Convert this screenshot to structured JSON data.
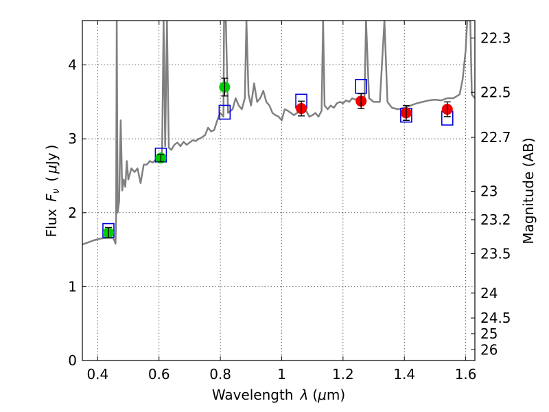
{
  "chart_data": {
    "type": "scatter",
    "xlabel_text": "Wavelength",
    "xlabel_symbol": "λ",
    "xlabel_unit_open": "(",
    "xlabel_unit_mu": "μ",
    "xlabel_unit_rest": "m)",
    "ylabel_text": "Flux",
    "ylabel_symbol": "F",
    "ylabel_sub": "ν",
    "ylabel_unit_open": "(",
    "ylabel_unit_mu": "μ",
    "ylabel_unit_rest": "Jy",
    "ylabel_unit_close": ")",
    "y2label": "Magnitude (AB)",
    "xlim": [
      0.35,
      1.63
    ],
    "ylim": [
      0,
      4.6
    ],
    "grid": true,
    "x_ticks": [
      {
        "v": 0.4,
        "label": "0.4"
      },
      {
        "v": 0.6,
        "label": "0.6"
      },
      {
        "v": 0.8,
        "label": "0.8"
      },
      {
        "v": 1.0,
        "label": "1"
      },
      {
        "v": 1.2,
        "label": "1.2"
      },
      {
        "v": 1.4,
        "label": "1.4"
      },
      {
        "v": 1.6,
        "label": "1.6"
      }
    ],
    "y_ticks": [
      {
        "v": 0,
        "label": "0"
      },
      {
        "v": 1,
        "label": "1"
      },
      {
        "v": 2,
        "label": "2"
      },
      {
        "v": 3,
        "label": "3"
      },
      {
        "v": 4,
        "label": "4"
      }
    ],
    "mag_ticks": [
      {
        "mag": 22.3,
        "label": "22.3"
      },
      {
        "mag": 22.5,
        "label": "22.5"
      },
      {
        "mag": 22.7,
        "label": "22.7"
      },
      {
        "mag": 23,
        "label": "23"
      },
      {
        "mag": 23.2,
        "label": "23.2"
      },
      {
        "mag": 23.5,
        "label": "23.5"
      },
      {
        "mag": 24,
        "label": "24"
      },
      {
        "mag": 24.5,
        "label": "24.5"
      },
      {
        "mag": 25,
        "label": "25"
      },
      {
        "mag": 26,
        "label": "26"
      }
    ],
    "series": [
      {
        "marker": "circle",
        "color": "#00cc00",
        "points": [
          {
            "x": 0.435,
            "y": 1.73,
            "err": 0.07
          },
          {
            "x": 0.606,
            "y": 2.74,
            "err": 0.05
          },
          {
            "x": 0.814,
            "y": 3.7,
            "err": 0.12
          }
        ]
      },
      {
        "marker": "circle",
        "color": "#ee0000",
        "points": [
          {
            "x": 1.064,
            "y": 3.41,
            "err": 0.1
          },
          {
            "x": 1.259,
            "y": 3.51,
            "err": 0.1
          },
          {
            "x": 1.406,
            "y": 3.35,
            "err": 0.1
          },
          {
            "x": 1.54,
            "y": 3.4,
            "err": 0.1
          }
        ]
      },
      {
        "marker": "open-square",
        "color": "#0000dd",
        "points": [
          {
            "x": 0.435,
            "y": 1.76
          },
          {
            "x": 0.606,
            "y": 2.78
          },
          {
            "x": 0.814,
            "y": 3.36
          },
          {
            "x": 1.064,
            "y": 3.51
          },
          {
            "x": 1.259,
            "y": 3.71
          },
          {
            "x": 1.406,
            "y": 3.32
          },
          {
            "x": 1.54,
            "y": 3.28
          }
        ]
      },
      {
        "marker": "line",
        "color": "#808080",
        "points": [
          {
            "x": 0.35,
            "y": 1.57
          },
          {
            "x": 0.37,
            "y": 1.6
          },
          {
            "x": 0.39,
            "y": 1.63
          },
          {
            "x": 0.41,
            "y": 1.65
          },
          {
            "x": 0.43,
            "y": 1.66
          },
          {
            "x": 0.45,
            "y": 1.66
          },
          {
            "x": 0.455,
            "y": 1.62
          },
          {
            "x": 0.458,
            "y": 1.58
          },
          {
            "x": 0.46,
            "y": 1.92
          },
          {
            "x": 0.462,
            "y": 4.6
          },
          {
            "x": 0.465,
            "y": 2.0
          },
          {
            "x": 0.47,
            "y": 2.15
          },
          {
            "x": 0.475,
            "y": 3.25
          },
          {
            "x": 0.48,
            "y": 2.3
          },
          {
            "x": 0.485,
            "y": 2.45
          },
          {
            "x": 0.49,
            "y": 2.35
          },
          {
            "x": 0.495,
            "y": 2.7
          },
          {
            "x": 0.5,
            "y": 2.45
          },
          {
            "x": 0.51,
            "y": 2.6
          },
          {
            "x": 0.52,
            "y": 2.55
          },
          {
            "x": 0.53,
            "y": 2.6
          },
          {
            "x": 0.54,
            "y": 2.4
          },
          {
            "x": 0.55,
            "y": 2.65
          },
          {
            "x": 0.56,
            "y": 2.65
          },
          {
            "x": 0.57,
            "y": 2.7
          },
          {
            "x": 0.58,
            "y": 2.68
          },
          {
            "x": 0.59,
            "y": 2.72
          },
          {
            "x": 0.6,
            "y": 2.78
          },
          {
            "x": 0.61,
            "y": 2.82
          },
          {
            "x": 0.615,
            "y": 4.6
          },
          {
            "x": 0.62,
            "y": 2.9
          },
          {
            "x": 0.626,
            "y": 4.6
          },
          {
            "x": 0.632,
            "y": 2.88
          },
          {
            "x": 0.64,
            "y": 2.85
          },
          {
            "x": 0.65,
            "y": 2.92
          },
          {
            "x": 0.66,
            "y": 2.95
          },
          {
            "x": 0.67,
            "y": 2.9
          },
          {
            "x": 0.68,
            "y": 2.96
          },
          {
            "x": 0.69,
            "y": 2.92
          },
          {
            "x": 0.7,
            "y": 2.95
          },
          {
            "x": 0.71,
            "y": 2.98
          },
          {
            "x": 0.72,
            "y": 2.97
          },
          {
            "x": 0.73,
            "y": 3.0
          },
          {
            "x": 0.74,
            "y": 3.02
          },
          {
            "x": 0.75,
            "y": 3.05
          },
          {
            "x": 0.76,
            "y": 3.15
          },
          {
            "x": 0.77,
            "y": 3.1
          },
          {
            "x": 0.78,
            "y": 3.12
          },
          {
            "x": 0.79,
            "y": 3.25
          },
          {
            "x": 0.8,
            "y": 3.35
          },
          {
            "x": 0.81,
            "y": 3.3
          },
          {
            "x": 0.812,
            "y": 4.6
          },
          {
            "x": 0.818,
            "y": 4.6
          },
          {
            "x": 0.825,
            "y": 3.35
          },
          {
            "x": 0.84,
            "y": 3.4
          },
          {
            "x": 0.85,
            "y": 3.55
          },
          {
            "x": 0.86,
            "y": 3.45
          },
          {
            "x": 0.87,
            "y": 3.4
          },
          {
            "x": 0.88,
            "y": 3.55
          },
          {
            "x": 0.885,
            "y": 4.6
          },
          {
            "x": 0.892,
            "y": 3.6
          },
          {
            "x": 0.9,
            "y": 3.45
          },
          {
            "x": 0.91,
            "y": 3.75
          },
          {
            "x": 0.92,
            "y": 3.5
          },
          {
            "x": 0.93,
            "y": 3.55
          },
          {
            "x": 0.94,
            "y": 3.65
          },
          {
            "x": 0.95,
            "y": 3.5
          },
          {
            "x": 0.96,
            "y": 3.45
          },
          {
            "x": 0.97,
            "y": 3.35
          },
          {
            "x": 0.98,
            "y": 3.32
          },
          {
            "x": 0.99,
            "y": 3.3
          },
          {
            "x": 1.0,
            "y": 3.25
          },
          {
            "x": 1.01,
            "y": 3.4
          },
          {
            "x": 1.02,
            "y": 3.38
          },
          {
            "x": 1.03,
            "y": 3.35
          },
          {
            "x": 1.04,
            "y": 3.32
          },
          {
            "x": 1.05,
            "y": 3.35
          },
          {
            "x": 1.06,
            "y": 3.38
          },
          {
            "x": 1.07,
            "y": 3.36
          },
          {
            "x": 1.08,
            "y": 3.38
          },
          {
            "x": 1.09,
            "y": 3.3
          },
          {
            "x": 1.1,
            "y": 3.32
          },
          {
            "x": 1.11,
            "y": 3.35
          },
          {
            "x": 1.12,
            "y": 3.3
          },
          {
            "x": 1.13,
            "y": 3.38
          },
          {
            "x": 1.135,
            "y": 4.6
          },
          {
            "x": 1.14,
            "y": 3.45
          },
          {
            "x": 1.15,
            "y": 3.4
          },
          {
            "x": 1.16,
            "y": 3.45
          },
          {
            "x": 1.17,
            "y": 3.42
          },
          {
            "x": 1.18,
            "y": 3.48
          },
          {
            "x": 1.19,
            "y": 3.5
          },
          {
            "x": 1.2,
            "y": 3.48
          },
          {
            "x": 1.21,
            "y": 3.52
          },
          {
            "x": 1.22,
            "y": 3.5
          },
          {
            "x": 1.23,
            "y": 3.55
          },
          {
            "x": 1.24,
            "y": 3.53
          },
          {
            "x": 1.25,
            "y": 3.55
          },
          {
            "x": 1.26,
            "y": 3.5
          },
          {
            "x": 1.27,
            "y": 3.55
          },
          {
            "x": 1.275,
            "y": 4.6
          },
          {
            "x": 1.285,
            "y": 3.55
          },
          {
            "x": 1.3,
            "y": 3.5
          },
          {
            "x": 1.32,
            "y": 3.5
          },
          {
            "x": 1.335,
            "y": 4.6
          },
          {
            "x": 1.345,
            "y": 3.5
          },
          {
            "x": 1.36,
            "y": 3.42
          },
          {
            "x": 1.38,
            "y": 3.4
          },
          {
            "x": 1.4,
            "y": 3.42
          },
          {
            "x": 1.42,
            "y": 3.45
          },
          {
            "x": 1.44,
            "y": 3.48
          },
          {
            "x": 1.46,
            "y": 3.5
          },
          {
            "x": 1.48,
            "y": 3.52
          },
          {
            "x": 1.5,
            "y": 3.53
          },
          {
            "x": 1.52,
            "y": 3.52
          },
          {
            "x": 1.54,
            "y": 3.55
          },
          {
            "x": 1.56,
            "y": 3.55
          },
          {
            "x": 1.58,
            "y": 3.6
          },
          {
            "x": 1.59,
            "y": 3.8
          },
          {
            "x": 1.6,
            "y": 4.2
          },
          {
            "x": 1.605,
            "y": 4.6
          },
          {
            "x": 1.615,
            "y": 4.6
          },
          {
            "x": 1.62,
            "y": 3.6
          },
          {
            "x": 1.63,
            "y": 3.55
          }
        ]
      }
    ]
  }
}
